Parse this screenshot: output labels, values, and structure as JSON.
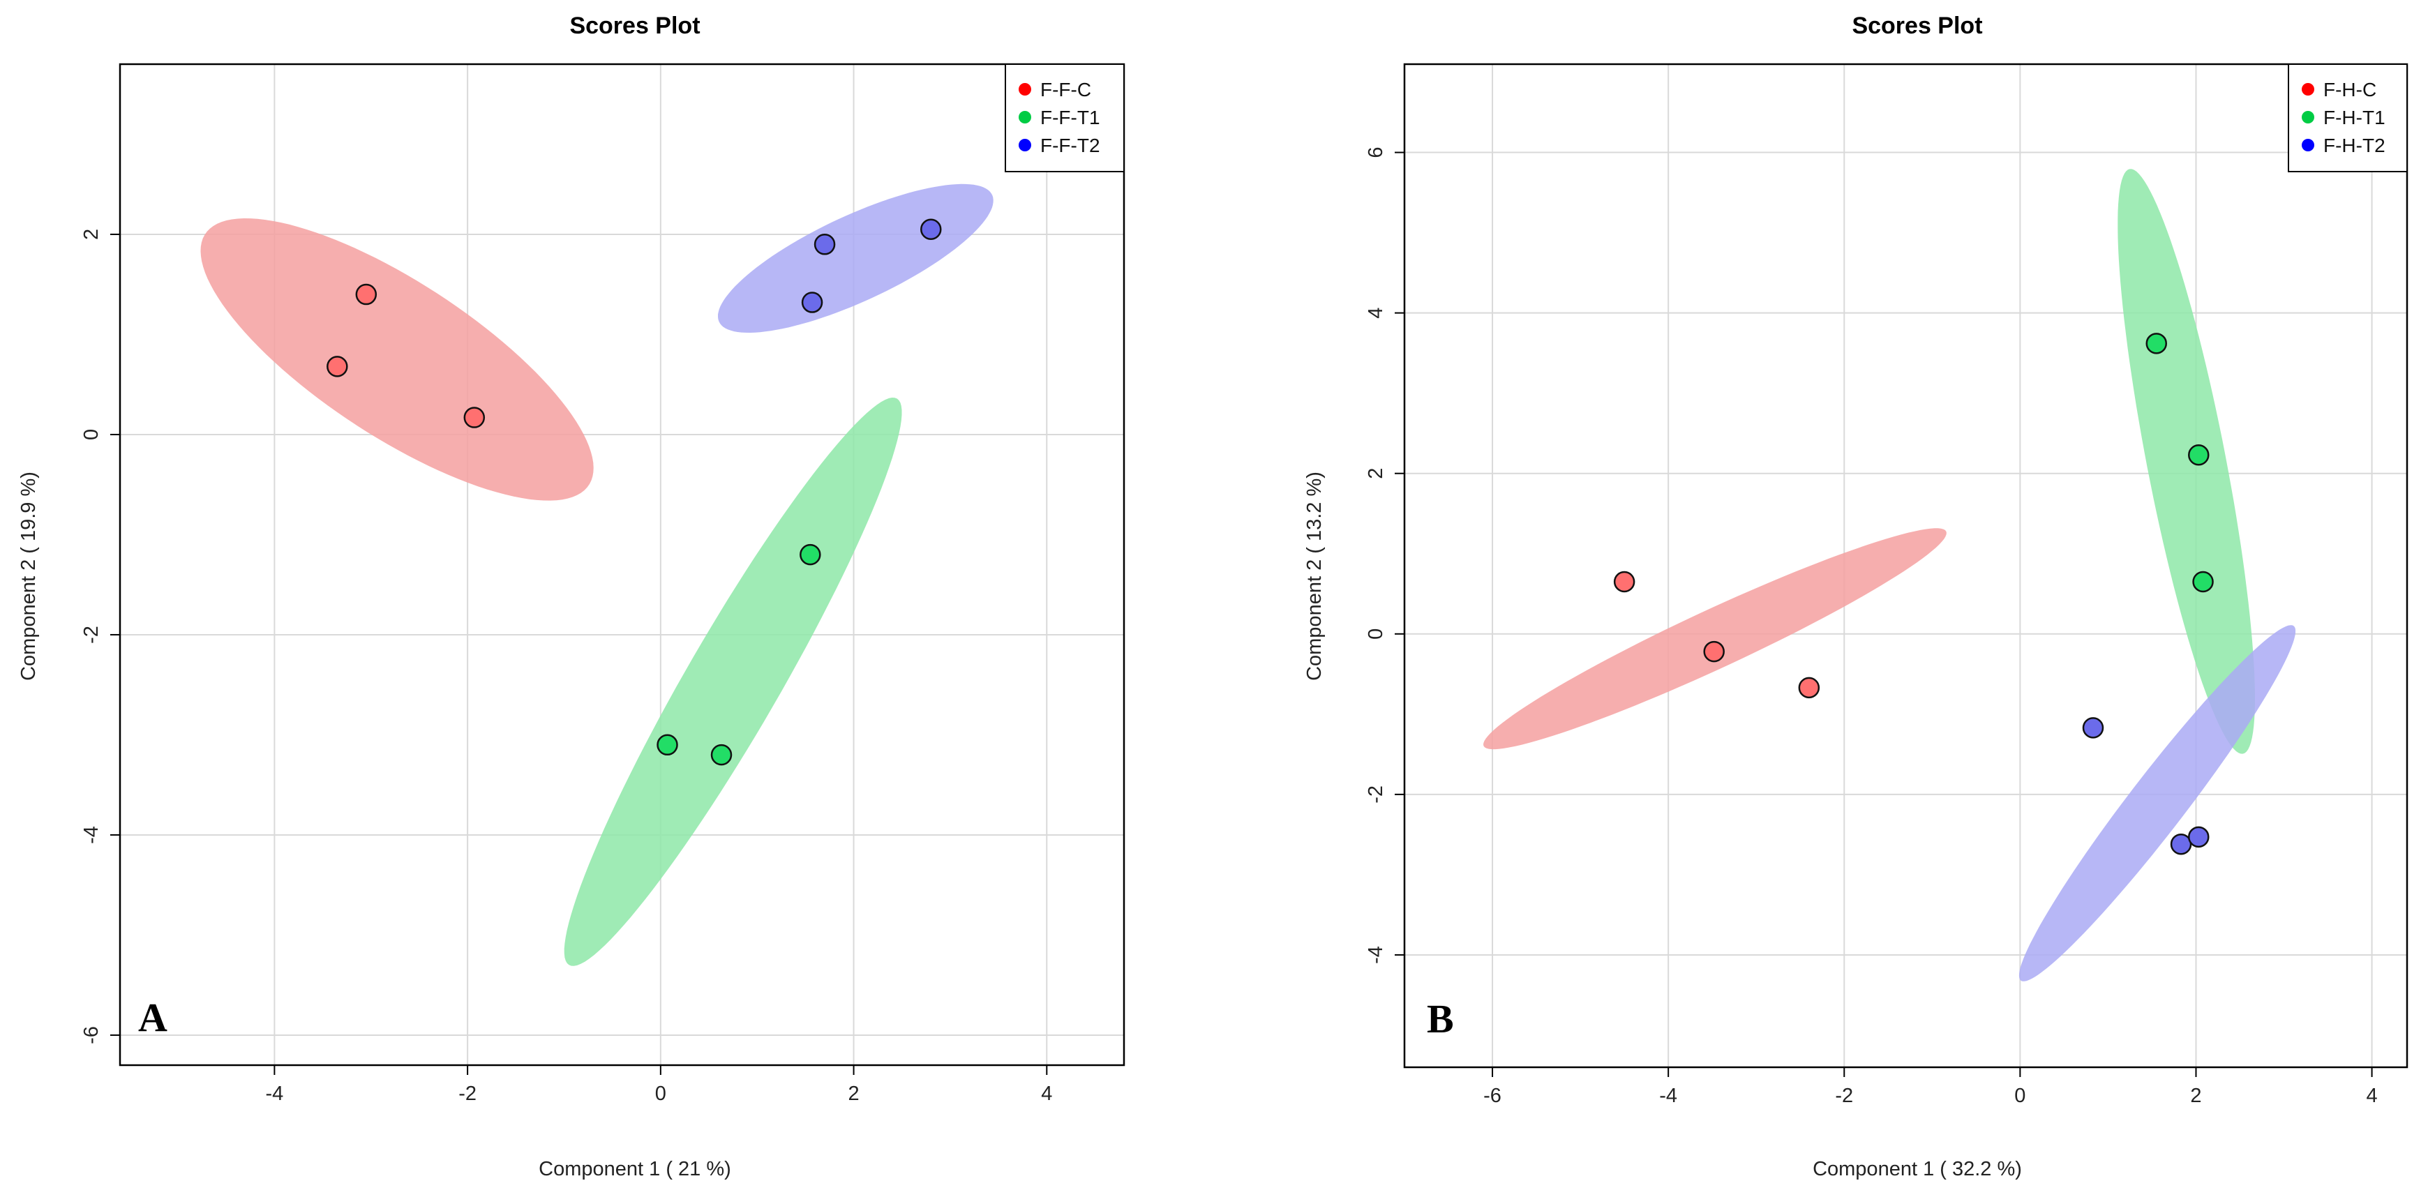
{
  "chart_data": [
    {
      "type": "scatter",
      "title": "Scores Plot",
      "xlabel": "Component 1 ( 21 %)",
      "ylabel": "Component 2 ( 19.9 %)",
      "panel_letter": "A",
      "xlim": [
        -5.6,
        4.8
      ],
      "ylim": [
        -6.3,
        3.7
      ],
      "xticks": [
        -4,
        -2,
        0,
        2,
        4
      ],
      "yticks": [
        -6,
        -4,
        -2,
        0,
        2
      ],
      "grid": true,
      "legend_position": "top-right",
      "series": [
        {
          "name": "F-F-C",
          "color": "#ff0000",
          "fill": "#ff7070",
          "ellipse_fill": "#f5a0a0",
          "points": [
            [
              -3.35,
              0.68
            ],
            [
              -3.05,
              1.4
            ],
            [
              -1.93,
              0.17
            ]
          ],
          "ellipse": {
            "cx": -2.73,
            "cy": 0.75,
            "rx": 2.35,
            "ry": 0.78,
            "angle": -32
          }
        },
        {
          "name": "F-F-T1",
          "color": "#00cc44",
          "fill": "#22dd66",
          "ellipse_fill": "#8ee8a8",
          "points": [
            [
              0.07,
              -3.1
            ],
            [
              0.63,
              -3.2
            ],
            [
              1.55,
              -1.2
            ]
          ],
          "ellipse": {
            "cx": 0.75,
            "cy": -2.47,
            "rx": 3.3,
            "ry": 0.48,
            "angle": 59
          }
        },
        {
          "name": "F-F-T2",
          "color": "#0000ff",
          "fill": "#6b6bea",
          "ellipse_fill": "#aaaaf5",
          "points": [
            [
              1.57,
              1.32
            ],
            [
              1.7,
              1.9
            ],
            [
              2.8,
              2.05
            ]
          ],
          "ellipse": {
            "cx": 2.02,
            "cy": 1.76,
            "rx": 1.55,
            "ry": 0.43,
            "angle": 24
          }
        }
      ]
    },
    {
      "type": "scatter",
      "title": "Scores Plot",
      "xlabel": "Component 1 ( 32.2 %)",
      "ylabel": "Component 2 ( 13.2 %)",
      "panel_letter": "B",
      "xlim": [
        -7.0,
        4.4
      ],
      "ylim": [
        -5.4,
        7.1
      ],
      "xticks": [
        -6,
        -4,
        -2,
        0,
        2,
        4
      ],
      "yticks": [
        -4,
        -2,
        0,
        2,
        4,
        6
      ],
      "grid": true,
      "legend_position": "top-right",
      "series": [
        {
          "name": "F-H-C",
          "color": "#ff0000",
          "fill": "#ff7070",
          "ellipse_fill": "#f5a0a0",
          "points": [
            [
              -4.5,
              0.65
            ],
            [
              -3.48,
              -0.22
            ],
            [
              -2.4,
              -0.67
            ]
          ],
          "ellipse": {
            "cx": -3.47,
            "cy": -0.06,
            "rx": 2.95,
            "ry": 0.36,
            "angle": 27
          }
        },
        {
          "name": "F-H-T1",
          "color": "#00cc44",
          "fill": "#22dd66",
          "ellipse_fill": "#8ee8a8",
          "points": [
            [
              1.55,
              3.62
            ],
            [
              2.03,
              2.23
            ],
            [
              2.08,
              0.65
            ]
          ],
          "ellipse": {
            "cx": 1.89,
            "cy": 2.15,
            "rx": 3.7,
            "ry": 0.45,
            "angle": -80
          }
        },
        {
          "name": "F-H-T2",
          "color": "#0000ff",
          "fill": "#6b6bea",
          "ellipse_fill": "#aaaaf5",
          "points": [
            [
              0.83,
              -1.17
            ],
            [
              1.83,
              -2.62
            ],
            [
              2.03,
              -2.53
            ]
          ],
          "ellipse": {
            "cx": 1.56,
            "cy": -2.11,
            "rx": 2.7,
            "ry": 0.33,
            "angle": 55
          }
        }
      ]
    }
  ]
}
